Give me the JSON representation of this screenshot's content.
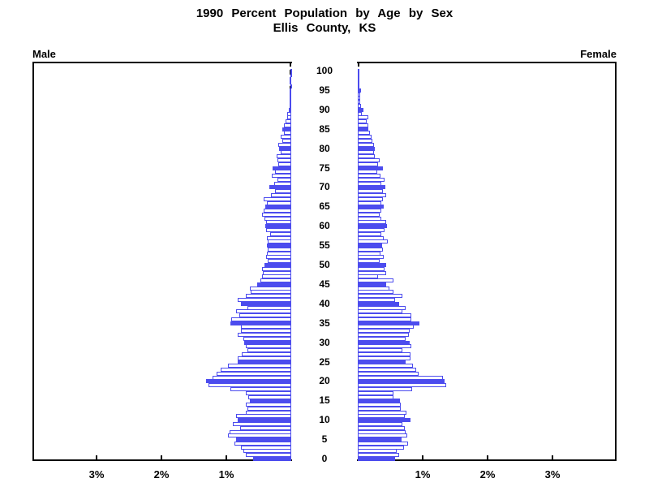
{
  "title": {
    "line1": "1990 Percent Population by Age by Sex",
    "line2": "Ellis County, KS"
  },
  "panels": {
    "male_label": "Male",
    "female_label": "Female"
  },
  "axis": {
    "x_tick_labels": [
      "1%",
      "2%",
      "3%"
    ],
    "x_tick_percents": [
      1,
      2,
      3
    ],
    "x_max_percent": 4,
    "age_tick_labels": [
      "0",
      "5",
      "10",
      "15",
      "20",
      "25",
      "30",
      "35",
      "40",
      "45",
      "50",
      "55",
      "60",
      "65",
      "70",
      "75",
      "80",
      "85",
      "90",
      "95",
      "100"
    ],
    "age_tick_step": 5
  },
  "colors": {
    "bar_blue": "#4c4cee",
    "bar_fill": "#ffffff",
    "axis_black": "#000000",
    "background": "#ffffff"
  },
  "chart_data": {
    "type": "bar",
    "subtype": "population-pyramid",
    "title": "1990 Percent Population by Age by Sex",
    "subtitle": "Ellis County, KS",
    "unit": "percent of total population",
    "x_range_percent": [
      0,
      4
    ],
    "x_ticks_percent": [
      1,
      2,
      3
    ],
    "age_min": 0,
    "age_max": 100,
    "highlight_every_5_years": true,
    "legend_position": "none",
    "grid": false,
    "series": [
      {
        "name": "Male",
        "side": "left",
        "values_by_age_0_to_100": [
          0.59,
          0.7,
          0.74,
          0.78,
          0.88,
          0.85,
          0.98,
          0.95,
          0.79,
          0.9,
          0.83,
          0.85,
          0.7,
          0.68,
          0.7,
          0.64,
          0.66,
          0.7,
          0.94,
          1.28,
          1.31,
          1.21,
          1.15,
          1.09,
          0.98,
          0.83,
          0.83,
          0.76,
          0.68,
          0.7,
          0.73,
          0.74,
          0.83,
          0.78,
          0.78,
          0.94,
          0.93,
          0.8,
          0.85,
          0.68,
          0.78,
          0.83,
          0.7,
          0.62,
          0.64,
          0.53,
          0.47,
          0.45,
          0.44,
          0.45,
          0.41,
          0.36,
          0.39,
          0.38,
          0.36,
          0.37,
          0.36,
          0.38,
          0.33,
          0.39,
          0.4,
          0.39,
          0.41,
          0.45,
          0.43,
          0.4,
          0.38,
          0.43,
          0.31,
          0.25,
          0.34,
          0.26,
          0.21,
          0.3,
          0.25,
          0.29,
          0.2,
          0.21,
          0.22,
          0.16,
          0.19,
          0.2,
          0.14,
          0.16,
          0.11,
          0.14,
          0.11,
          0.09,
          0.06,
          0.06,
          0.04,
          0.03,
          0.03,
          0.03,
          0.03,
          0.03,
          0.01,
          0.03,
          0.03,
          0.01,
          0.01
        ]
      },
      {
        "name": "Female",
        "side": "right",
        "values_by_age_0_to_100": [
          0.58,
          0.64,
          0.6,
          0.71,
          0.78,
          0.68,
          0.76,
          0.74,
          0.72,
          0.69,
          0.81,
          0.72,
          0.75,
          0.66,
          0.66,
          0.65,
          0.55,
          0.55,
          0.84,
          1.36,
          1.34,
          1.31,
          0.94,
          0.9,
          0.85,
          0.74,
          0.81,
          0.81,
          0.69,
          0.83,
          0.8,
          0.74,
          0.79,
          0.8,
          0.86,
          0.95,
          0.83,
          0.83,
          0.69,
          0.74,
          0.64,
          0.58,
          0.69,
          0.55,
          0.49,
          0.44,
          0.55,
          0.31,
          0.44,
          0.41,
          0.44,
          0.34,
          0.4,
          0.35,
          0.39,
          0.38,
          0.46,
          0.4,
          0.36,
          0.41,
          0.45,
          0.44,
          0.36,
          0.34,
          0.36,
          0.4,
          0.36,
          0.39,
          0.44,
          0.39,
          0.43,
          0.36,
          0.41,
          0.35,
          0.3,
          0.39,
          0.31,
          0.34,
          0.26,
          0.25,
          0.26,
          0.25,
          0.23,
          0.21,
          0.19,
          0.16,
          0.16,
          0.14,
          0.16,
          0.06,
          0.09,
          0.05,
          0.04,
          0.04,
          0.04,
          0.05,
          0.03,
          0.03,
          0.02,
          0.01,
          0.01
        ]
      }
    ]
  }
}
